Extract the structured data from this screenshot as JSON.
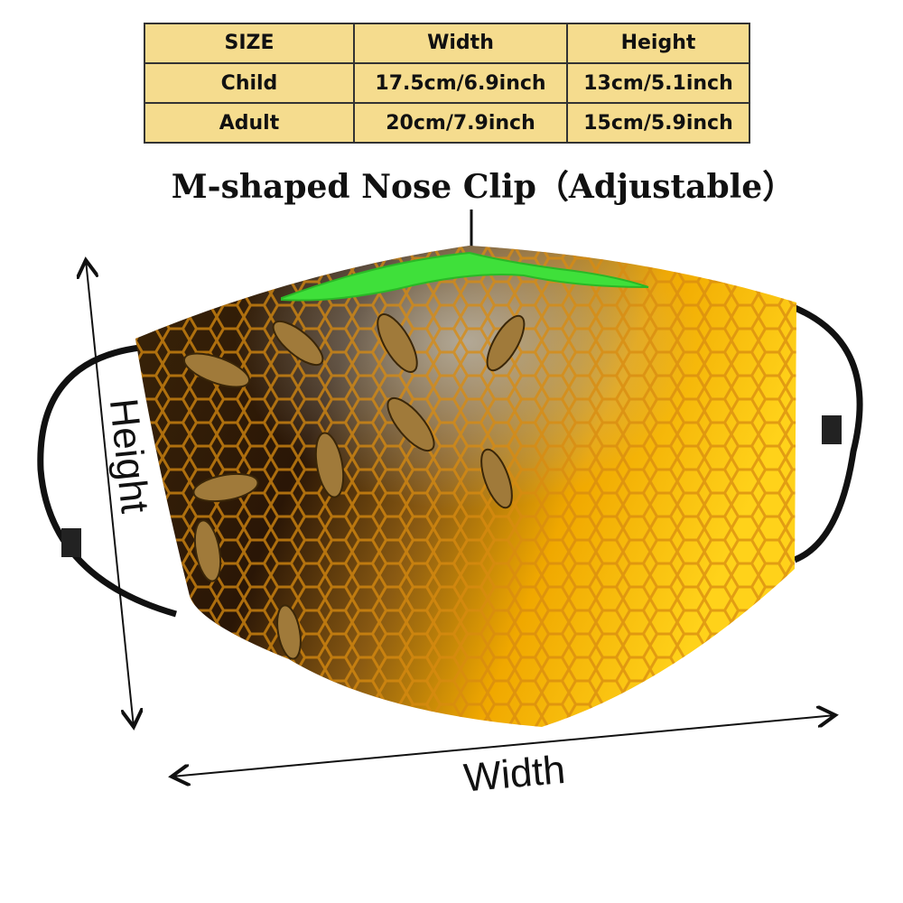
{
  "table": {
    "header": [
      "SIZE",
      "Width",
      "Height"
    ],
    "rows": [
      [
        "Child",
        "17.5cm/6.9inch",
        "13cm/5.1inch"
      ],
      [
        "Adult",
        "20cm/7.9inch",
        "15cm/5.9inch"
      ]
    ]
  },
  "nose_clip_label": "M-shaped Nose Clip（Adjustable）",
  "height_label": "Height",
  "width_label": "Width"
}
